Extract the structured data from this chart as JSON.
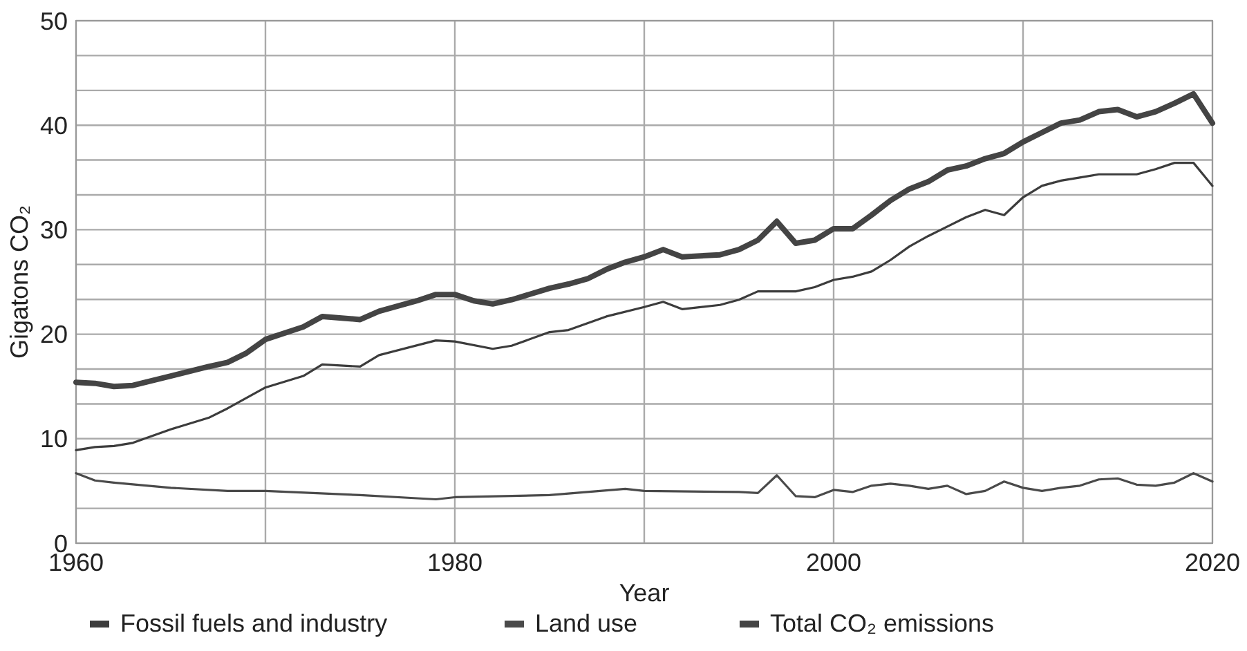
{
  "chart_data": {
    "type": "line",
    "xlabel": "Year",
    "ylabel": "Gigatons CO₂",
    "xlim": [
      1960,
      2020
    ],
    "xticks": [
      1960,
      {
        "value": 1970,
        "label": null
      },
      1980,
      {
        "value": 1990,
        "label": null
      },
      2000,
      {
        "value": 2010,
        "label": null
      },
      2020
    ],
    "ylim": [
      0,
      50
    ],
    "yticks": [
      0,
      {
        "value": 3.33,
        "label": null
      },
      {
        "value": 6.67,
        "label": null
      },
      10,
      {
        "value": 13.33,
        "label": null
      },
      {
        "value": 16.67,
        "label": null
      },
      20,
      {
        "value": 23.33,
        "label": null
      },
      {
        "value": 26.67,
        "label": null
      },
      30,
      {
        "value": 33.33,
        "label": null
      },
      {
        "value": 36.67,
        "label": null
      },
      40,
      {
        "value": 43.33,
        "label": null
      },
      {
        "value": 46.67,
        "label": null
      },
      50
    ],
    "grid": true,
    "legend": "bottom",
    "marker": "none",
    "line_style": "solid",
    "series": [
      {
        "name": "Fossil fuels and industry",
        "color": "#3c3c3c",
        "x": [
          1960,
          1961,
          1962,
          1963,
          1965,
          1967,
          1968,
          1970,
          1972,
          1973,
          1975,
          1976,
          1979,
          1980,
          1982,
          1983,
          1985,
          1986,
          1988,
          1990,
          1991,
          1992,
          1994,
          1995,
          1996,
          1998,
          1999,
          2000,
          2001,
          2002,
          2003,
          2004,
          2005,
          2006,
          2007,
          2008,
          2009,
          2010,
          2011,
          2012,
          2013,
          2014,
          2015,
          2016,
          2017,
          2018,
          2019,
          2020
        ],
        "values": [
          8.9,
          9.2,
          9.3,
          9.6,
          10.9,
          12.0,
          12.9,
          14.9,
          16.0,
          17.1,
          16.9,
          18.0,
          19.4,
          19.3,
          18.6,
          18.9,
          20.2,
          20.4,
          21.7,
          22.6,
          23.1,
          22.4,
          22.8,
          23.3,
          24.1,
          24.1,
          24.5,
          25.2,
          25.5,
          26.0,
          27.1,
          28.4,
          29.4,
          30.3,
          31.2,
          31.9,
          31.4,
          33.1,
          34.2,
          34.7,
          35.0,
          35.3,
          35.3,
          35.3,
          35.8,
          36.4,
          36.4,
          34.2
        ]
      },
      {
        "name": "Land use",
        "color": "#4a4a4a",
        "x": [
          1960,
          1961,
          1962,
          1965,
          1968,
          1970,
          1975,
          1978,
          1979,
          1980,
          1985,
          1989,
          1990,
          1995,
          1996,
          1997,
          1998,
          1999,
          2000,
          2001,
          2002,
          2003,
          2004,
          2005,
          2006,
          2007,
          2008,
          2009,
          2010,
          2011,
          2012,
          2013,
          2014,
          2015,
          2016,
          2017,
          2018,
          2019,
          2020
        ],
        "values": [
          6.7,
          6.0,
          5.8,
          5.3,
          5.0,
          5.0,
          4.6,
          4.3,
          4.2,
          4.4,
          4.6,
          5.2,
          5.0,
          4.9,
          4.8,
          6.5,
          4.5,
          4.4,
          5.1,
          4.9,
          5.5,
          5.7,
          5.5,
          5.2,
          5.5,
          4.7,
          5.0,
          5.9,
          5.3,
          5.0,
          5.3,
          5.5,
          6.1,
          6.2,
          5.6,
          5.5,
          5.8,
          6.7,
          5.9
        ]
      },
      {
        "name": "Total CO₂ emissions",
        "color": "#444444",
        "x": [
          1960,
          1961,
          1962,
          1963,
          1965,
          1967,
          1968,
          1969,
          1970,
          1972,
          1973,
          1975,
          1976,
          1978,
          1979,
          1980,
          1981,
          1982,
          1983,
          1985,
          1986,
          1987,
          1988,
          1989,
          1990,
          1991,
          1992,
          1994,
          1995,
          1996,
          1997,
          1998,
          1999,
          2000,
          2001,
          2002,
          2003,
          2004,
          2005,
          2006,
          2007,
          2008,
          2009,
          2010,
          2011,
          2012,
          2013,
          2014,
          2015,
          2016,
          2017,
          2018,
          2019,
          2020
        ],
        "values": [
          15.4,
          15.3,
          15.0,
          15.1,
          16.0,
          16.9,
          17.3,
          18.2,
          19.5,
          20.7,
          21.7,
          21.4,
          22.2,
          23.2,
          23.8,
          23.8,
          23.2,
          22.9,
          23.3,
          24.4,
          24.8,
          25.3,
          26.2,
          26.9,
          27.4,
          28.1,
          27.4,
          27.6,
          28.1,
          29.0,
          30.8,
          28.7,
          29.0,
          30.1,
          30.1,
          31.4,
          32.8,
          33.9,
          34.6,
          35.7,
          36.1,
          36.8,
          37.3,
          38.4,
          39.3,
          40.2,
          40.5,
          41.3,
          41.5,
          40.8,
          41.3,
          42.1,
          43.0,
          40.2
        ]
      }
    ]
  }
}
